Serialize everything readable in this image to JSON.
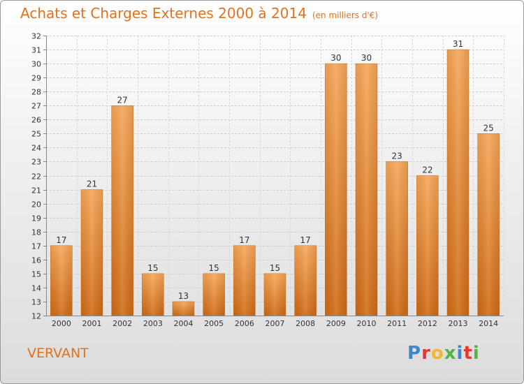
{
  "chart_data": {
    "type": "bar",
    "title": "Achats et Charges Externes 2000 à 2014",
    "unit_note": "(en milliers d'€)",
    "categories": [
      "2000",
      "2001",
      "2002",
      "2003",
      "2004",
      "2005",
      "2006",
      "2007",
      "2008",
      "2009",
      "2010",
      "2011",
      "2012",
      "2013",
      "2014"
    ],
    "values": [
      17,
      21,
      27,
      15,
      13,
      15,
      17,
      15,
      17,
      30,
      30,
      23,
      22,
      31,
      25
    ],
    "xlabel": "",
    "ylabel": "",
    "ylim": [
      12,
      32
    ],
    "yticks": [
      12,
      13,
      14,
      15,
      16,
      17,
      18,
      19,
      20,
      21,
      22,
      23,
      24,
      25,
      26,
      27,
      28,
      29,
      30,
      31,
      32
    ],
    "grid": true,
    "legend": "none",
    "bar_color": "#f29b45"
  },
  "place_name": "VERVANT",
  "logo": {
    "letters": [
      "P",
      "r",
      "o",
      "x",
      "i",
      "t",
      "i"
    ],
    "colors": [
      "#3c86c9",
      "#e8362a",
      "#f3b52c",
      "#56b247",
      "#3c86c9",
      "#e8362a",
      "#56b247"
    ]
  }
}
